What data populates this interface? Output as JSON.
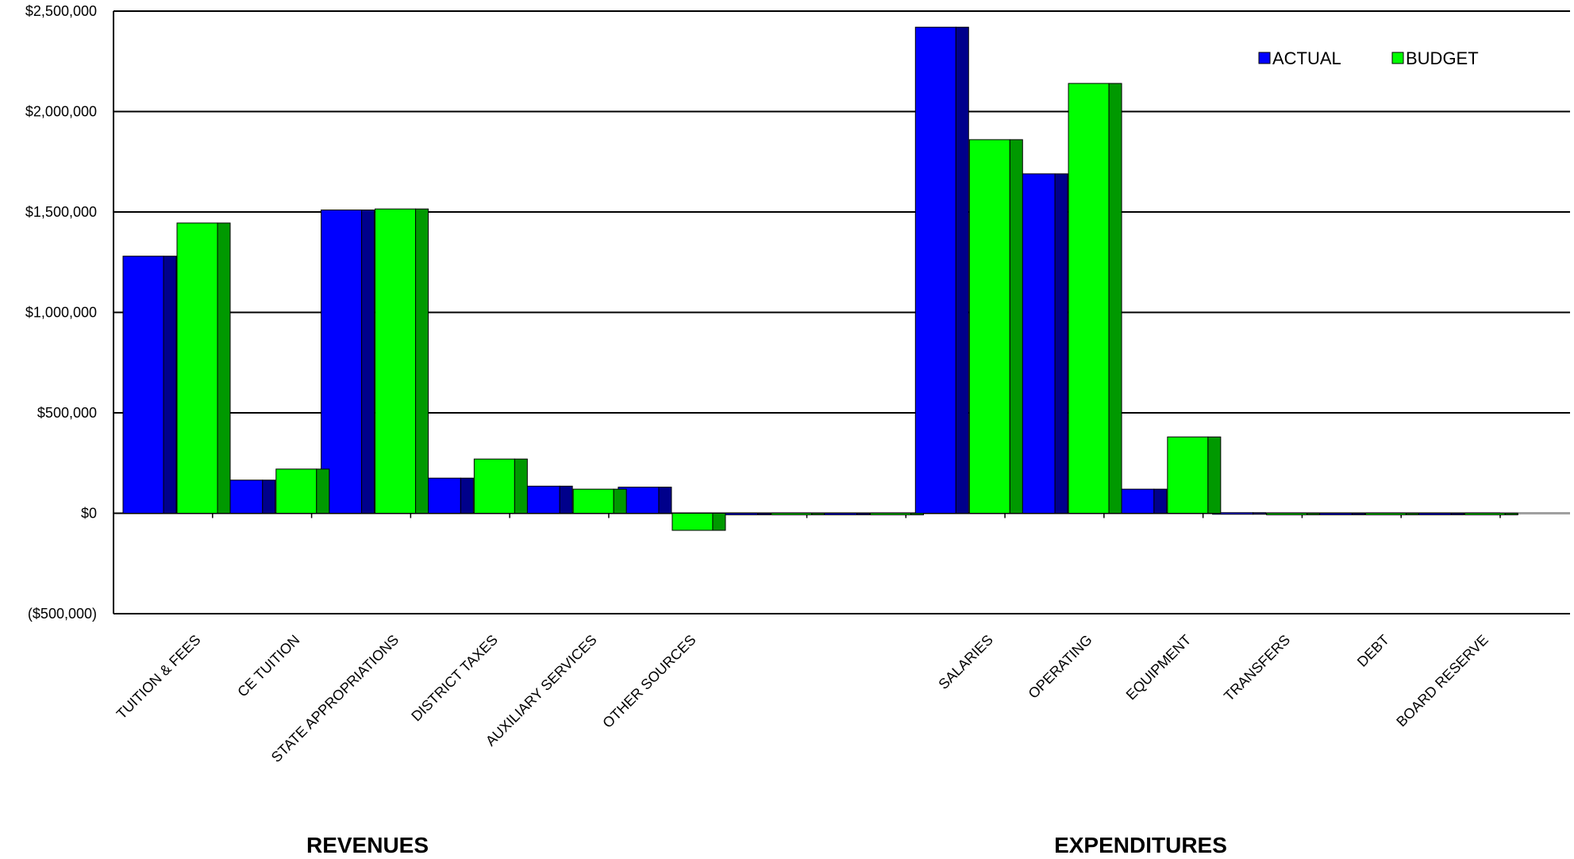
{
  "chart_data": {
    "type": "bar",
    "title": "",
    "xlabel": "",
    "ylabel": "",
    "ylim": [
      -500000,
      2500000
    ],
    "y_ticks": [
      2500000,
      2000000,
      1500000,
      1000000,
      500000,
      0,
      -500000
    ],
    "y_tick_labels": [
      "$2,500,000",
      "$2,000,000",
      "$1,500,000",
      "$1,000,000",
      "$500,000",
      "$0",
      "($500,000)"
    ],
    "grid": true,
    "legend_position": "top-right",
    "categories": [
      "TUITION & FEES",
      "CE TUITION",
      "STATE APPROPRIATIONS",
      "DISTRICT TAXES",
      "AUXILIARY SERVICES",
      "OTHER SOURCES",
      "",
      "",
      "SALARIES",
      "OPERATING",
      "EQUIPMENT",
      "TRANSFERS",
      "DEBT",
      "BOARD RESERVE"
    ],
    "series": [
      {
        "name": "ACTUAL",
        "color": "#0000ff",
        "side_color": "#00008b",
        "values": [
          1280000,
          165000,
          1510000,
          175000,
          135000,
          130000,
          0,
          0,
          2420000,
          1690000,
          120000,
          3000,
          0,
          0
        ]
      },
      {
        "name": "BUDGET",
        "color": "#00ff00",
        "side_color": "#009900",
        "values": [
          1445000,
          220000,
          1515000,
          270000,
          120000,
          -85000,
          0,
          0,
          1860000,
          2140000,
          380000,
          0,
          0,
          0
        ]
      }
    ],
    "group_labels": [
      "REVENUES",
      "EXPENDITURES"
    ]
  }
}
